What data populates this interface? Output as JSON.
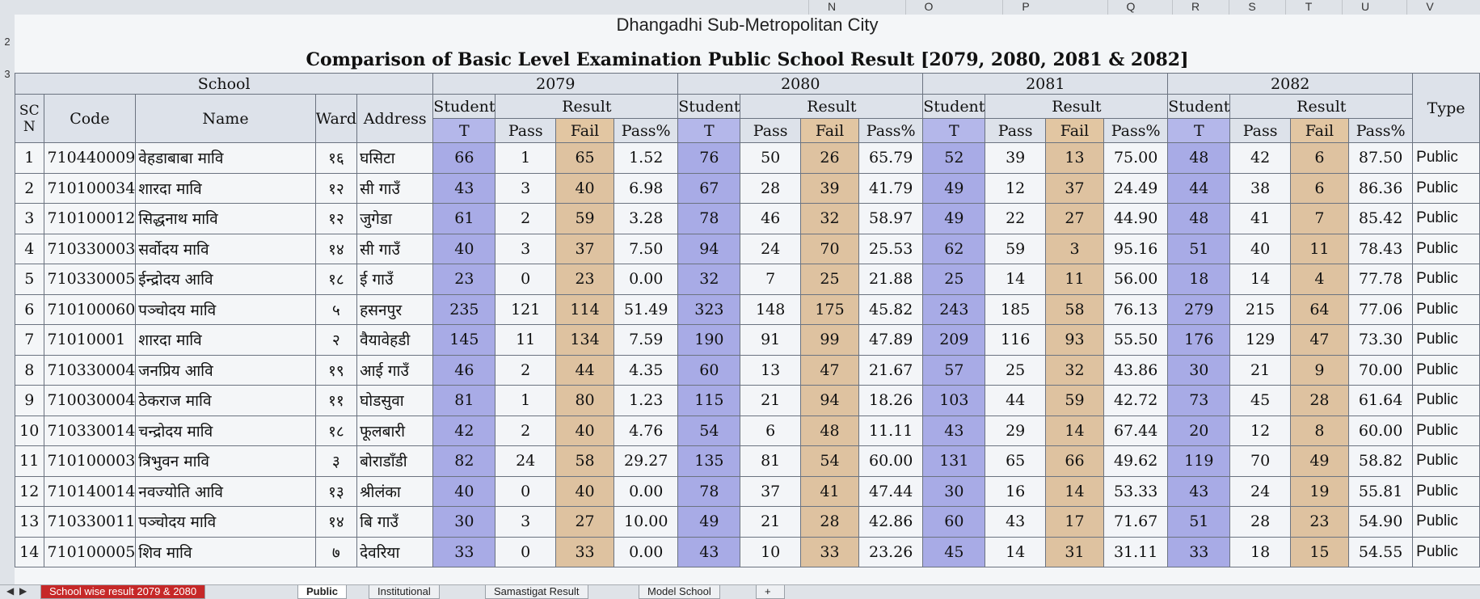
{
  "column_headers": [
    "N",
    "O",
    "P",
    "Q",
    "R",
    "S",
    "T",
    "U",
    "V"
  ],
  "row_headers": [
    "2",
    "3"
  ],
  "title_city": "Dhangadhi Sub-Metropolitan City",
  "title_main": "Comparison of Basic Level Examination Public School Result [2079, 2080, 2081 & 2082]",
  "headers": {
    "school": "School",
    "sn": "SC N",
    "code": "Code",
    "name": "Name",
    "ward": "Ward",
    "address": "Address",
    "type": "Type",
    "student": "Student",
    "result": "Result",
    "t": "T",
    "pass": "Pass",
    "fail": "Fail",
    "pass_pct": "Pass%",
    "years": [
      "2079",
      "2080",
      "2081",
      "2082"
    ]
  },
  "rows": [
    {
      "sn": "1",
      "code": "710440009",
      "name": "वेहडाबाबा मावि",
      "ward": "१६",
      "address": "घसिटा",
      "y2079": [
        "66",
        "1",
        "65",
        "1.52"
      ],
      "y2080": [
        "76",
        "50",
        "26",
        "65.79"
      ],
      "y2081": [
        "52",
        "39",
        "13",
        "75.00"
      ],
      "y2082": [
        "48",
        "42",
        "6",
        "87.50"
      ],
      "type": "Public"
    },
    {
      "sn": "2",
      "code": "710100034",
      "name": "शारदा मावि",
      "ward": "१२",
      "address": "सी गाउँ",
      "y2079": [
        "43",
        "3",
        "40",
        "6.98"
      ],
      "y2080": [
        "67",
        "28",
        "39",
        "41.79"
      ],
      "y2081": [
        "49",
        "12",
        "37",
        "24.49"
      ],
      "y2082": [
        "44",
        "38",
        "6",
        "86.36"
      ],
      "type": "Public"
    },
    {
      "sn": "3",
      "code": "710100012",
      "name": "सिद्धनाथ मावि",
      "ward": "१२",
      "address": "जुगेडा",
      "y2079": [
        "61",
        "2",
        "59",
        "3.28"
      ],
      "y2080": [
        "78",
        "46",
        "32",
        "58.97"
      ],
      "y2081": [
        "49",
        "22",
        "27",
        "44.90"
      ],
      "y2082": [
        "48",
        "41",
        "7",
        "85.42"
      ],
      "type": "Public"
    },
    {
      "sn": "4",
      "code": "710330003",
      "name": "सर्वोदय मावि",
      "ward": "१४",
      "address": "सी गाउँ",
      "y2079": [
        "40",
        "3",
        "37",
        "7.50"
      ],
      "y2080": [
        "94",
        "24",
        "70",
        "25.53"
      ],
      "y2081": [
        "62",
        "59",
        "3",
        "95.16"
      ],
      "y2082": [
        "51",
        "40",
        "11",
        "78.43"
      ],
      "type": "Public"
    },
    {
      "sn": "5",
      "code": "710330005",
      "name": "ईन्द्रोदय आवि",
      "ward": "१८",
      "address": "ई गाउँ",
      "y2079": [
        "23",
        "0",
        "23",
        "0.00"
      ],
      "y2080": [
        "32",
        "7",
        "25",
        "21.88"
      ],
      "y2081": [
        "25",
        "14",
        "11",
        "56.00"
      ],
      "y2082": [
        "18",
        "14",
        "4",
        "77.78"
      ],
      "type": "Public"
    },
    {
      "sn": "6",
      "code": "710100060",
      "name": "पञ्चोदय मावि",
      "ward": "५",
      "address": "हसनपुर",
      "y2079": [
        "235",
        "121",
        "114",
        "51.49"
      ],
      "y2080": [
        "323",
        "148",
        "175",
        "45.82"
      ],
      "y2081": [
        "243",
        "185",
        "58",
        "76.13"
      ],
      "y2082": [
        "279",
        "215",
        "64",
        "77.06"
      ],
      "type": "Public"
    },
    {
      "sn": "7",
      "code": "71010001",
      "name": "शारदा मावि",
      "ward": "२",
      "address": "वैयावेहडी",
      "y2079": [
        "145",
        "11",
        "134",
        "7.59"
      ],
      "y2080": [
        "190",
        "91",
        "99",
        "47.89"
      ],
      "y2081": [
        "209",
        "116",
        "93",
        "55.50"
      ],
      "y2082": [
        "176",
        "129",
        "47",
        "73.30"
      ],
      "type": "Public"
    },
    {
      "sn": "8",
      "code": "710330004",
      "name": "जनप्रिय आवि",
      "ward": "१९",
      "address": "आई गाउँ",
      "y2079": [
        "46",
        "2",
        "44",
        "4.35"
      ],
      "y2080": [
        "60",
        "13",
        "47",
        "21.67"
      ],
      "y2081": [
        "57",
        "25",
        "32",
        "43.86"
      ],
      "y2082": [
        "30",
        "21",
        "9",
        "70.00"
      ],
      "type": "Public"
    },
    {
      "sn": "9",
      "code": "710030004",
      "name": "ठेकराज मावि",
      "ward": "११",
      "address": "घोडसुवा",
      "y2079": [
        "81",
        "1",
        "80",
        "1.23"
      ],
      "y2080": [
        "115",
        "21",
        "94",
        "18.26"
      ],
      "y2081": [
        "103",
        "44",
        "59",
        "42.72"
      ],
      "y2082": [
        "73",
        "45",
        "28",
        "61.64"
      ],
      "type": "Public"
    },
    {
      "sn": "10",
      "code": "710330014",
      "name": "चन्द्रोदय मावि",
      "ward": "१८",
      "address": "फूलबारी",
      "y2079": [
        "42",
        "2",
        "40",
        "4.76"
      ],
      "y2080": [
        "54",
        "6",
        "48",
        "11.11"
      ],
      "y2081": [
        "43",
        "29",
        "14",
        "67.44"
      ],
      "y2082": [
        "20",
        "12",
        "8",
        "60.00"
      ],
      "type": "Public"
    },
    {
      "sn": "11",
      "code": "710100003",
      "name": "त्रिभुवन मावि",
      "ward": "३",
      "address": "बोराडाँडी",
      "y2079": [
        "82",
        "24",
        "58",
        "29.27"
      ],
      "y2080": [
        "135",
        "81",
        "54",
        "60.00"
      ],
      "y2081": [
        "131",
        "65",
        "66",
        "49.62"
      ],
      "y2082": [
        "119",
        "70",
        "49",
        "58.82"
      ],
      "type": "Public"
    },
    {
      "sn": "12",
      "code": "710140014",
      "name": "नवज्योति आवि",
      "ward": "१३",
      "address": "श्रीलंका",
      "y2079": [
        "40",
        "0",
        "40",
        "0.00"
      ],
      "y2080": [
        "78",
        "37",
        "41",
        "47.44"
      ],
      "y2081": [
        "30",
        "16",
        "14",
        "53.33"
      ],
      "y2082": [
        "43",
        "24",
        "19",
        "55.81"
      ],
      "type": "Public"
    },
    {
      "sn": "13",
      "code": "710330011",
      "name": "पञ्चोदय मावि",
      "ward": "१४",
      "address": "बि गाउँ",
      "y2079": [
        "30",
        "3",
        "27",
        "10.00"
      ],
      "y2080": [
        "49",
        "21",
        "28",
        "42.86"
      ],
      "y2081": [
        "60",
        "43",
        "17",
        "71.67"
      ],
      "y2082": [
        "51",
        "28",
        "23",
        "54.90"
      ],
      "type": "Public"
    },
    {
      "sn": "14",
      "code": "710100005",
      "name": "शिव मावि",
      "ward": "७",
      "address": "देवरिया",
      "y2079": [
        "33",
        "0",
        "33",
        "0.00"
      ],
      "y2080": [
        "43",
        "10",
        "33",
        "23.26"
      ],
      "y2081": [
        "45",
        "14",
        "31",
        "31.11"
      ],
      "y2082": [
        "33",
        "18",
        "15",
        "54.55"
      ],
      "type": "Public"
    }
  ],
  "sheet_tabs": [
    "School wise result 2079 & 2080",
    "Public",
    "Institutional",
    "Samastigat Result",
    "Model School"
  ],
  "colors": {
    "t_column": "#a8abe6",
    "fail_column": "#dec2a0",
    "active_tab_red": "#c62828"
  }
}
